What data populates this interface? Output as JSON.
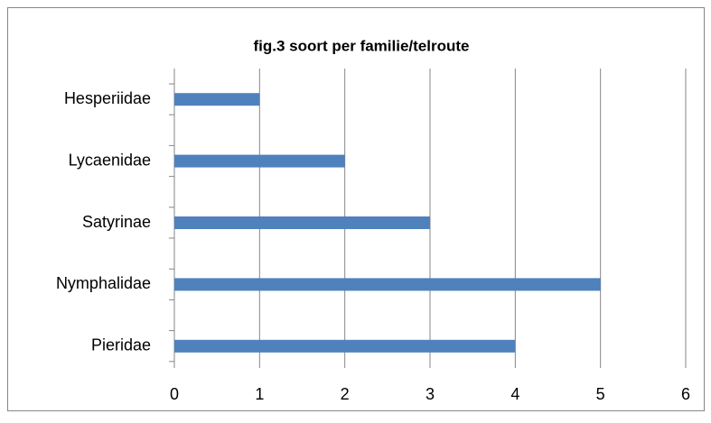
{
  "chart_data": {
    "type": "bar",
    "orientation": "horizontal",
    "title": "fig.3  soort per familie/telroute",
    "categories": [
      "Hesperiidae",
      "Lycaenidae",
      "Satyrinae",
      "Nymphalidae",
      "Pieridae"
    ],
    "values": [
      1,
      2,
      3,
      5,
      4
    ],
    "color": "#4f81bd",
    "xlim": [
      0,
      6
    ],
    "xticks": [
      0,
      1,
      2,
      3,
      4,
      5,
      6
    ],
    "grid": true
  }
}
